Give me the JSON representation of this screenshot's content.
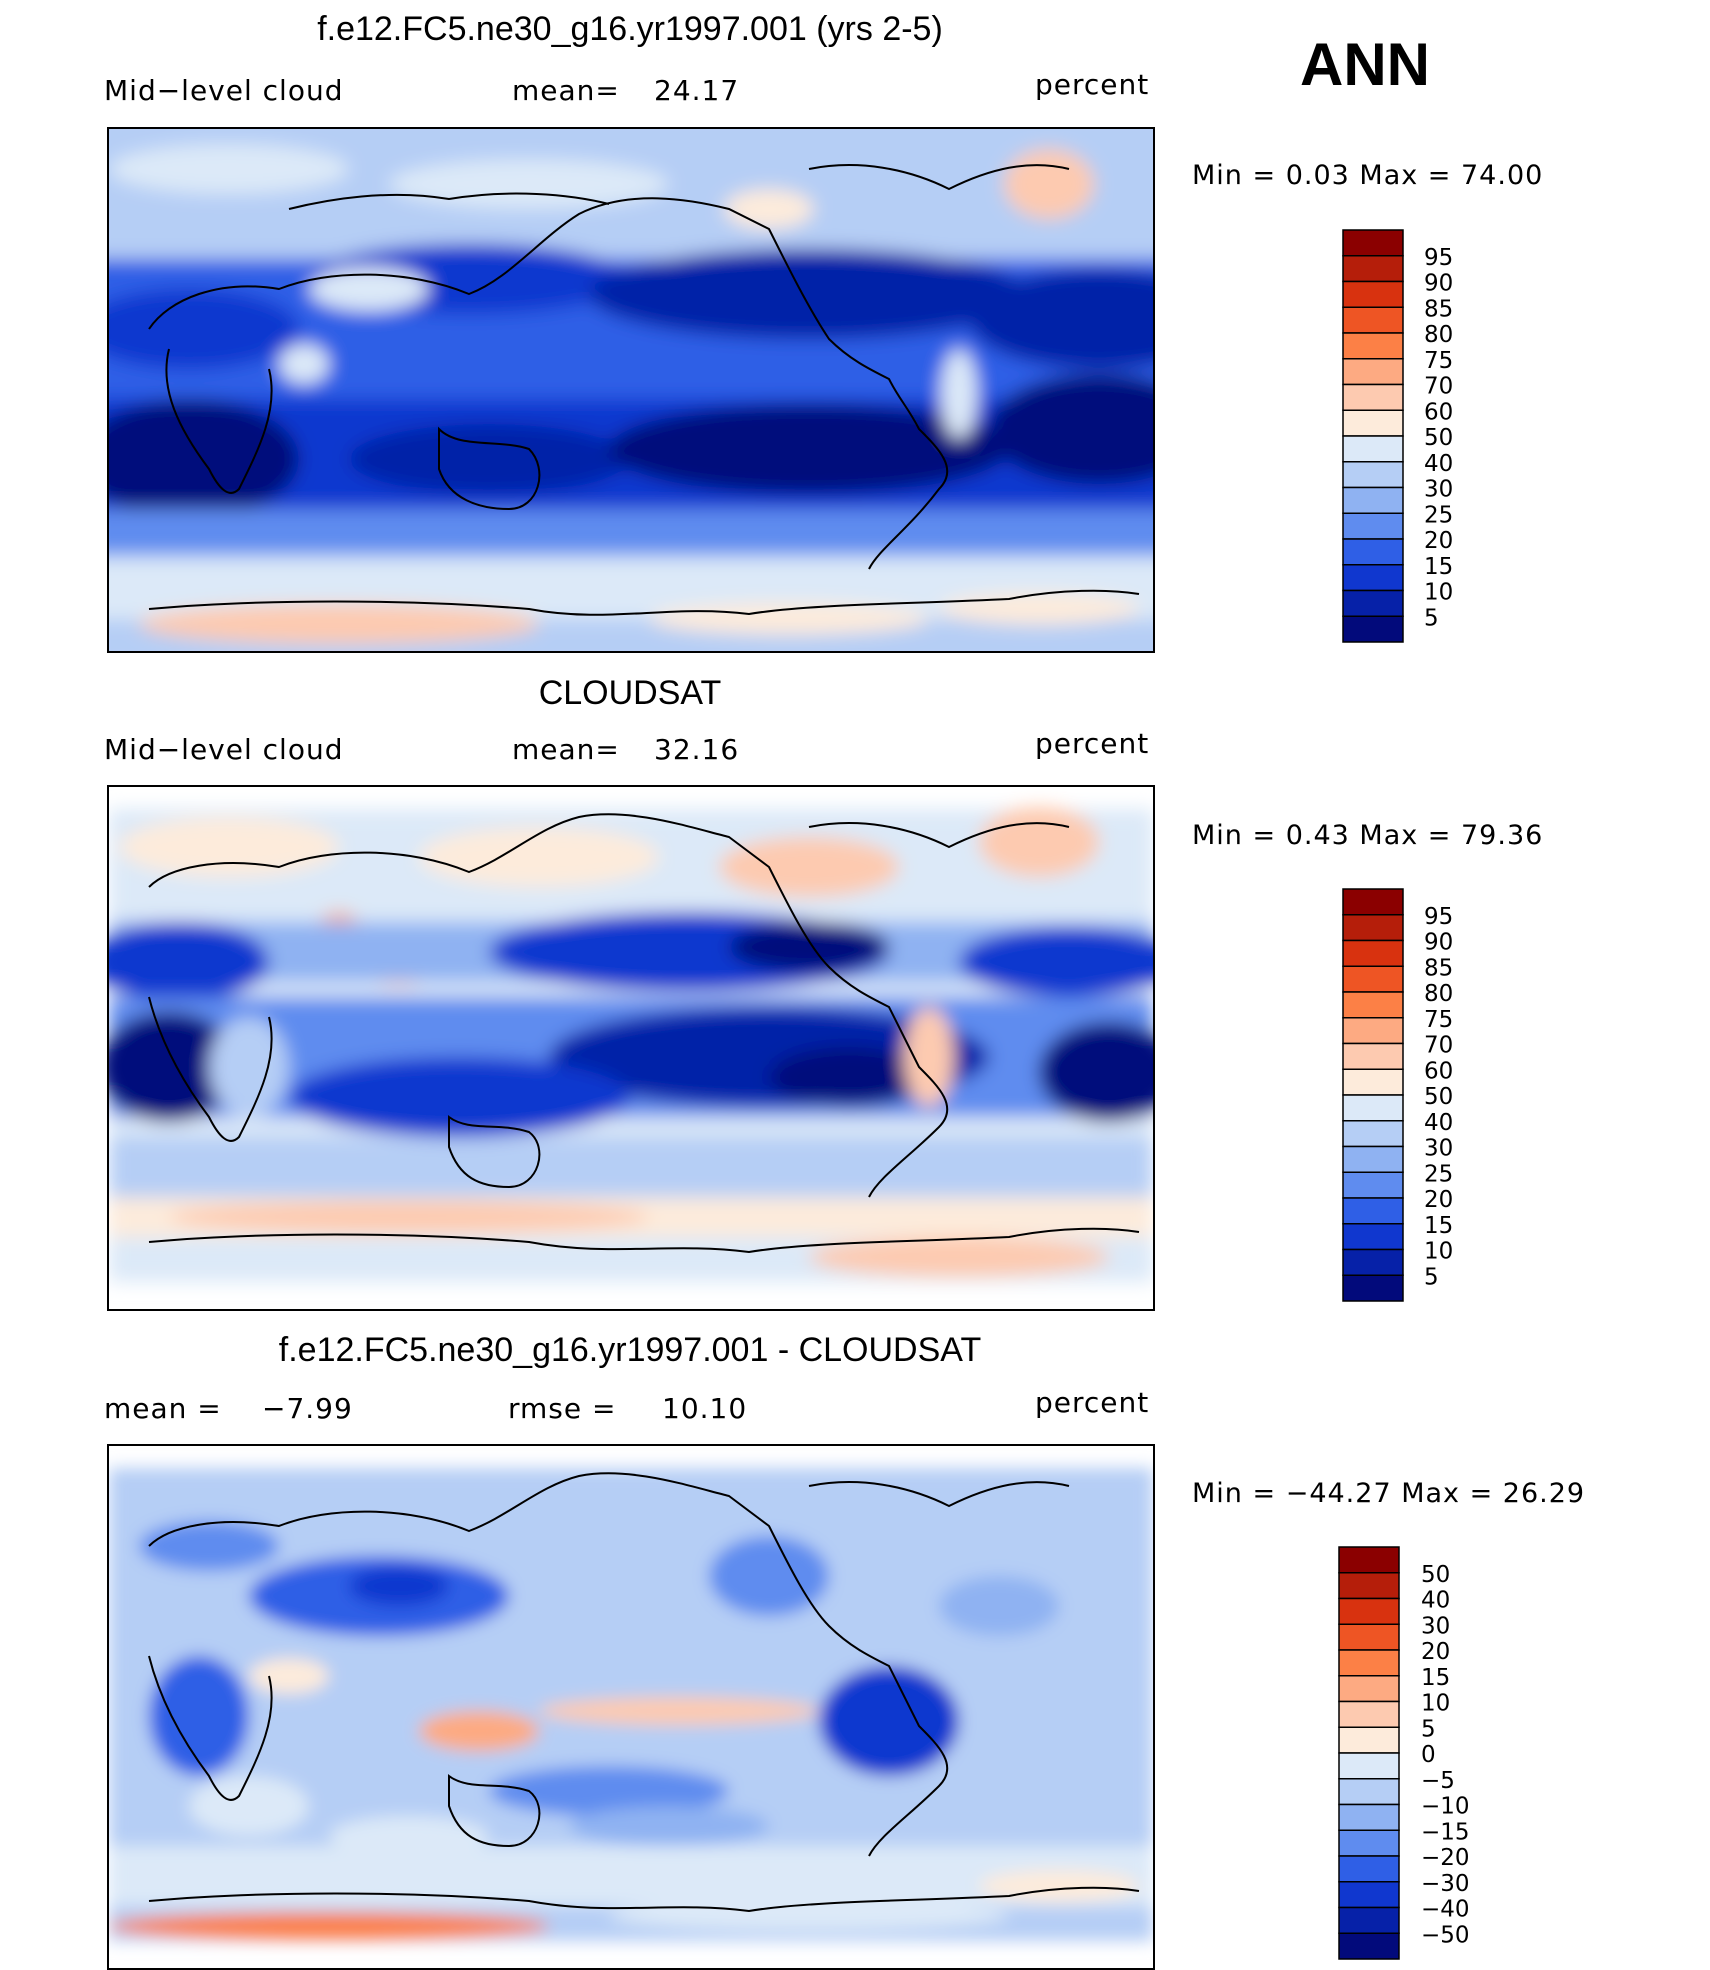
{
  "season": "ANN",
  "colorbar_model": {
    "labels": [
      "95",
      "90",
      "85",
      "80",
      "75",
      "70",
      "60",
      "50",
      "40",
      "30",
      "25",
      "20",
      "15",
      "10",
      "5"
    ],
    "colors": [
      "#8b0000",
      "#b51e0a",
      "#d8320f",
      "#ee5524",
      "#fc8046",
      "#fdaa82",
      "#fdcab0",
      "#fdebdb",
      "#dce9f8",
      "#b5cef5",
      "#8fb2f2",
      "#5f8cef",
      "#2f5fe6",
      "#1037cf",
      "#0621a8",
      "#020a7b"
    ]
  },
  "colorbar_diff": {
    "labels": [
      "50",
      "40",
      "30",
      "20",
      "15",
      "10",
      "5",
      "0",
      "−5",
      "−10",
      "−15",
      "−20",
      "−30",
      "−40",
      "−50"
    ],
    "colors": [
      "#8b0000",
      "#b51e0a",
      "#d8320f",
      "#ee5524",
      "#fc8046",
      "#fdaa82",
      "#fdcab0",
      "#fdebdb",
      "#dce9f8",
      "#b5cef5",
      "#8fb2f2",
      "#5f8cef",
      "#2f5fe6",
      "#1037cf",
      "#0621a8",
      "#020a7b"
    ]
  },
  "panels": [
    {
      "title": "f.e12.FC5.ne30_g16.yr1997.001 (yrs 2-5)",
      "left": "Mid−level cloud",
      "middle_label": "mean=",
      "middle_value": "24.17",
      "units": "percent",
      "minmax": "Min =    0.03  Max =    74.00"
    },
    {
      "title": "CLOUDSAT",
      "left": "Mid−level cloud",
      "middle_label": "mean=",
      "middle_value": "32.16",
      "units": "percent",
      "minmax": "Min =    0.43  Max =    79.36"
    },
    {
      "title": "f.e12.FC5.ne30_g16.yr1997.001 - CLOUDSAT",
      "left_label": "mean =",
      "left_value": "−7.99",
      "middle_label": "rmse =",
      "middle_value": "10.10",
      "units": "percent",
      "minmax": "Min = −44.27  Max =    26.29"
    }
  ],
  "chart_data": {
    "type": "heatmap",
    "title": "ANN",
    "maps": [
      {
        "title": "f.e12.FC5.ne30_g16.yr1997.001 (yrs 2-5)",
        "variable": "Mid-level cloud",
        "units": "percent",
        "mean": 24.17,
        "min": 0.03,
        "max": 74.0,
        "contour_levels": [
          5,
          10,
          15,
          20,
          25,
          30,
          40,
          50,
          60,
          70,
          75,
          80,
          85,
          90,
          95
        ]
      },
      {
        "title": "CLOUDSAT",
        "variable": "Mid-level cloud",
        "units": "percent",
        "mean": 32.16,
        "min": 0.43,
        "max": 79.36,
        "contour_levels": [
          5,
          10,
          15,
          20,
          25,
          30,
          40,
          50,
          60,
          70,
          75,
          80,
          85,
          90,
          95
        ]
      },
      {
        "title": "f.e12.FC5.ne30_g16.yr1997.001 - CLOUDSAT",
        "units": "percent",
        "mean": -7.99,
        "rmse": 10.1,
        "min": -44.27,
        "max": 26.29,
        "contour_levels": [
          -50,
          -40,
          -30,
          -20,
          -15,
          -10,
          -5,
          0,
          5,
          10,
          15,
          20,
          30,
          40,
          50
        ]
      }
    ]
  }
}
